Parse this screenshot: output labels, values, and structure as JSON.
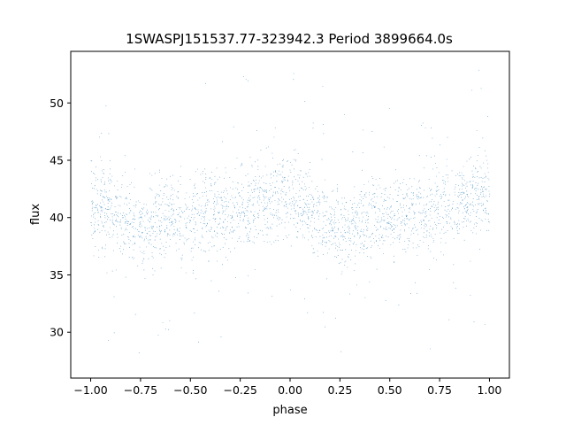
{
  "chart_data": {
    "type": "scatter",
    "title": "1SWASPJ151537.77-323942.3 Period 3899664.0s",
    "xlabel": "phase",
    "ylabel": "flux",
    "xlim": [
      -1.1,
      1.1
    ],
    "ylim": [
      26,
      54.5
    ],
    "xticks": [
      -1.0,
      -0.75,
      -0.5,
      -0.25,
      0.0,
      0.25,
      0.5,
      0.75,
      1.0
    ],
    "xtick_labels": [
      "−1.00",
      "−0.75",
      "−0.50",
      "−0.25",
      "0.00",
      "0.25",
      "0.50",
      "0.75",
      "1.00"
    ],
    "yticks": [
      30,
      35,
      40,
      45,
      50
    ],
    "ytick_labels": [
      "30",
      "35",
      "40",
      "45",
      "50"
    ],
    "grid": false,
    "marker_color": "#1f77b4",
    "series": [
      {
        "x": [
          -1.0,
          -0.95,
          -0.9,
          -0.85,
          -0.8,
          -0.75,
          -0.7,
          -0.65,
          -0.6,
          -0.55,
          -0.5,
          -0.45,
          -0.4,
          -0.35,
          -0.3,
          -0.25,
          -0.2,
          -0.15,
          -0.1,
          -0.05,
          0.0,
          0.05,
          0.1,
          0.15,
          0.2,
          0.25,
          0.3,
          0.35,
          0.4,
          0.45,
          0.5,
          0.55,
          0.6,
          0.65,
          0.7,
          0.75,
          0.8,
          0.85,
          0.9,
          0.95,
          1.0
        ],
        "y": [
          42.0,
          41.0,
          40.5,
          40.0,
          39.5,
          39.0,
          39.0,
          39.5,
          40.0,
          40.0,
          40.0,
          40.5,
          40.5,
          40.5,
          40.5,
          41.0,
          41.0,
          41.5,
          41.5,
          42.0,
          42.0,
          41.0,
          40.5,
          40.0,
          39.5,
          39.0,
          39.0,
          39.5,
          40.0,
          40.0,
          40.0,
          40.5,
          40.5,
          40.5,
          40.5,
          41.0,
          41.0,
          41.5,
          41.5,
          42.0,
          42.0
        ]
      }
    ]
  }
}
